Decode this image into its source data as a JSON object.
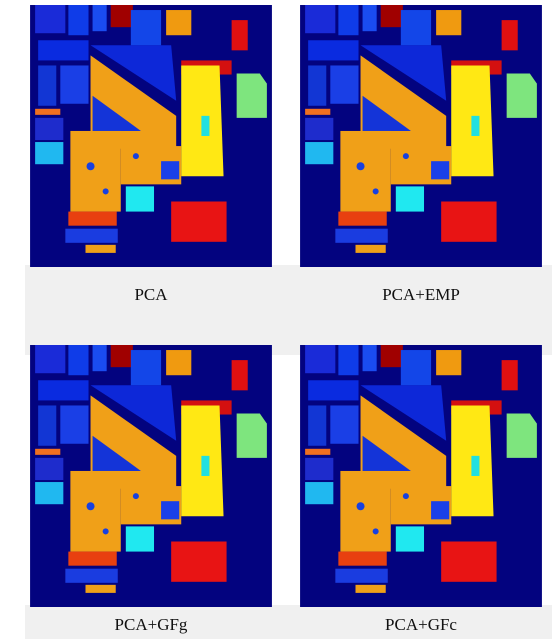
{
  "panels": [
    {
      "caption": "PCA"
    },
    {
      "caption": "PCA+EMP"
    },
    {
      "caption": "PCA+GFg"
    },
    {
      "caption": "PCA+GFc"
    }
  ]
}
